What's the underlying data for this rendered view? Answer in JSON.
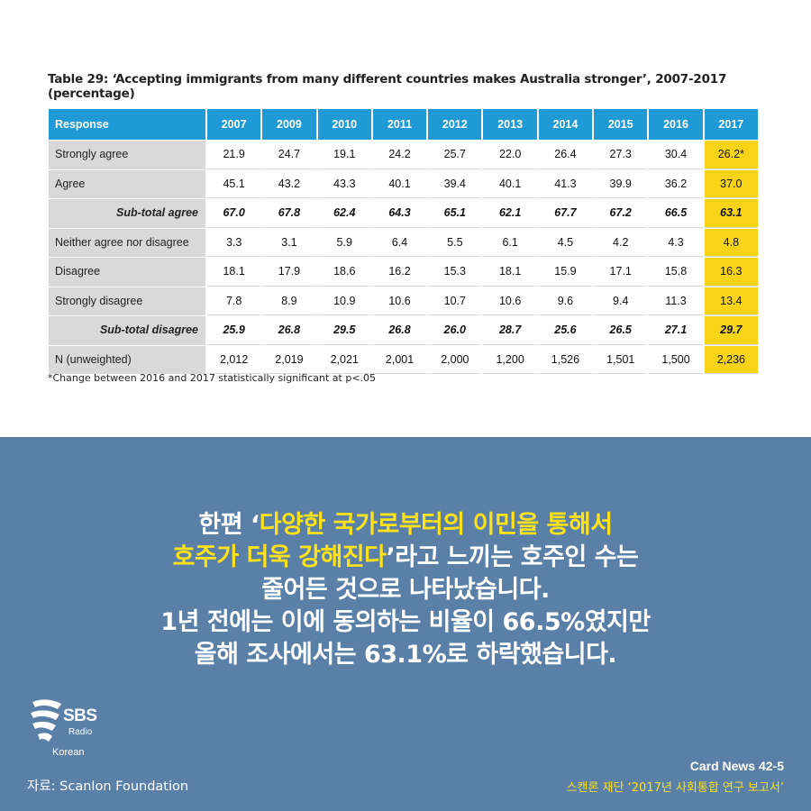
{
  "table": {
    "title": "Table 29: ‘Accepting immigrants from many different countries makes Australia stronger’, 2007-2017 (percentage)",
    "header": [
      "Response",
      "2007",
      "2009",
      "2010",
      "2011",
      "2012",
      "2013",
      "2014",
      "2015",
      "2016",
      "2017"
    ],
    "rows": [
      {
        "label": "Strongly agree",
        "values": [
          "21.9",
          "24.7",
          "19.1",
          "24.2",
          "25.7",
          "22.0",
          "26.4",
          "27.3",
          "30.4",
          "26.2*"
        ],
        "subtotal": false
      },
      {
        "label": "Agree",
        "values": [
          "45.1",
          "43.2",
          "43.3",
          "40.1",
          "39.4",
          "40.1",
          "41.3",
          "39.9",
          "36.2",
          "37.0"
        ],
        "subtotal": false
      },
      {
        "label": "Sub-total agree",
        "values": [
          "67.0",
          "67.8",
          "62.4",
          "64.3",
          "65.1",
          "62.1",
          "67.7",
          "67.2",
          "66.5",
          "63.1"
        ],
        "subtotal": true
      },
      {
        "label": "Neither agree nor disagree",
        "values": [
          "3.3",
          "3.1",
          "5.9",
          "6.4",
          "5.5",
          "6.1",
          "4.5",
          "4.2",
          "4.3",
          "4.8"
        ],
        "subtotal": false
      },
      {
        "label": "Disagree",
        "values": [
          "18.1",
          "17.9",
          "18.6",
          "16.2",
          "15.3",
          "18.1",
          "15.9",
          "17.1",
          "15.8",
          "16.3"
        ],
        "subtotal": false
      },
      {
        "label": "Strongly disagree",
        "values": [
          "7.8",
          "8.9",
          "10.9",
          "10.6",
          "10.7",
          "10.6",
          "9.6",
          "9.4",
          "11.3",
          "13.4"
        ],
        "subtotal": false
      },
      {
        "label": "Sub-total disagree",
        "values": [
          "25.9",
          "26.8",
          "29.5",
          "26.8",
          "26.0",
          "28.7",
          "25.6",
          "26.5",
          "27.1",
          "29.7"
        ],
        "subtotal": true
      },
      {
        "label": "N (unweighted)",
        "values": [
          "2,012",
          "2,019",
          "2,021",
          "2,001",
          "2,000",
          "1,200",
          "1,526",
          "1,501",
          "1,500",
          "2,236"
        ],
        "subtotal": false
      }
    ],
    "footnote": "*Change between 2016 and 2017 statistically significant at p<.05",
    "header_color": "#1f9ad6",
    "highlight_color": "#f7d417"
  },
  "headline": {
    "l1a": "한편 ‘",
    "l1b": "다양한 국가로부터의 이민을 통해서",
    "l2a": "호주가 더욱 강해진다",
    "l2b": "’라고 느끼는 호주인 수는",
    "l3": "줄어든 것으로 나타났습니다.",
    "l4": "1년 전에는 이에 동의하는 비율이 66.5%였지만",
    "l5": "올해 조사에서는 63.1%로 하락했습니다."
  },
  "logo": {
    "name": "SBS",
    "radio": "Radio",
    "sub": "Korean"
  },
  "footer": {
    "source": "자료: Scanlon Foundation",
    "card": "Card News 42-5",
    "report": "스캔론 재단 ‘2017년 사회통합 연구 보고서’"
  },
  "colors": {
    "panel": "#5b80a8",
    "accent_yellow": "#ffe21a"
  }
}
